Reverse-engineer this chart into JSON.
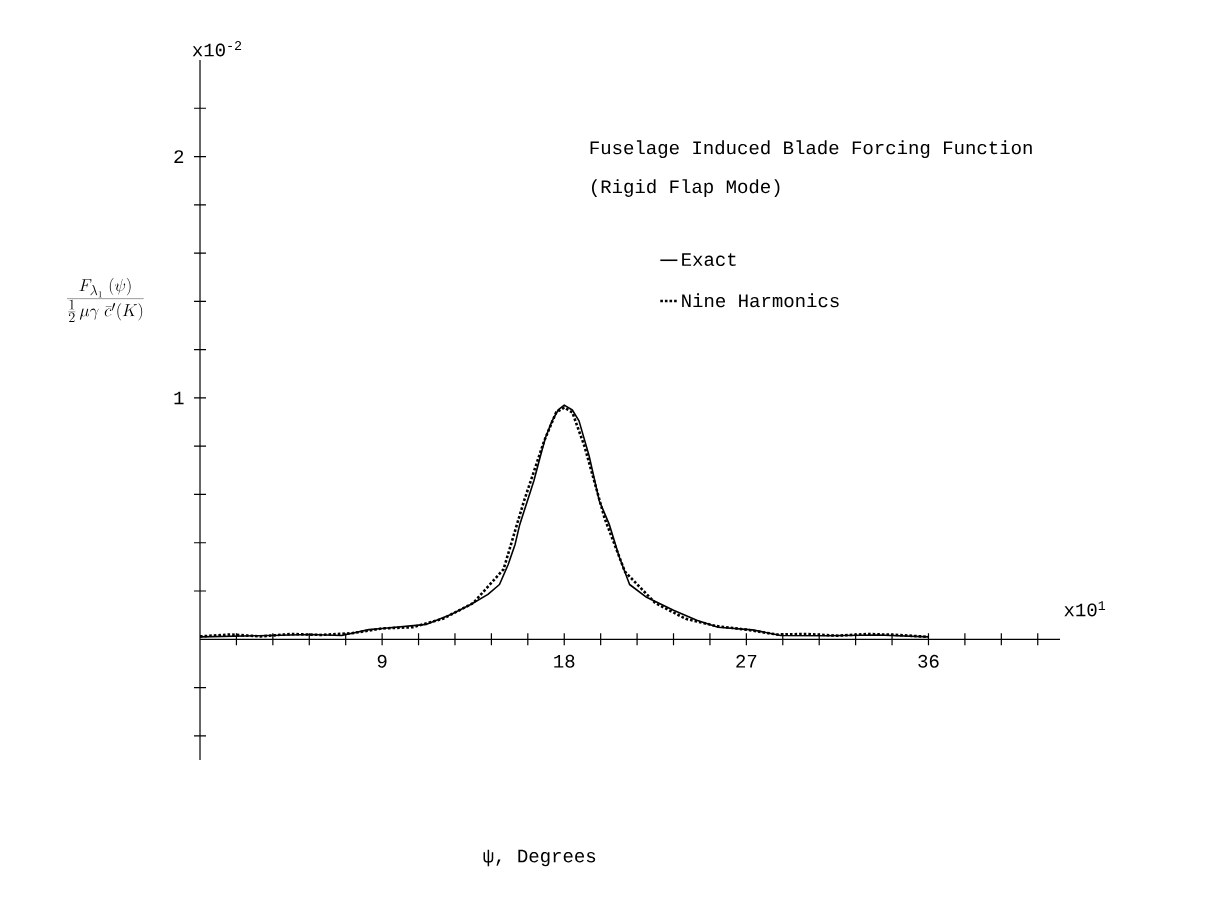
{
  "chart_data": {
    "type": "line",
    "title": "Fuselage Induced Blade Forcing Function",
    "subtitle": "(Rigid Flap Mode)",
    "xlabel": "ψ, Degrees",
    "ylabel": "\\frac{F_{\\lambda_1}\\;(\\psi)}{\\frac{1}{2}\\,\\mu\\gamma\\;\\bar{c}'(K)}",
    "annotations": [
      "x10$^{-2}$",
      "x10$^{1}$"
    ],
    "xlim": [
      0,
      42.5
    ],
    "ylim": [
      -0.5,
      2.4
    ],
    "xticks": [
      {
        "value": 1.8,
        "label": null
      },
      {
        "value": 3.6,
        "label": null
      },
      {
        "value": 5.4,
        "label": null
      },
      {
        "value": 7.2,
        "label": null
      },
      9,
      {
        "value": 10.8,
        "label": null
      },
      {
        "value": 12.6,
        "label": null
      },
      {
        "value": 14.4,
        "label": null
      },
      {
        "value": 16.2,
        "label": null
      },
      18,
      {
        "value": 19.8,
        "label": null
      },
      {
        "value": 21.6,
        "label": null
      },
      {
        "value": 23.4,
        "label": null
      },
      {
        "value": 25.2,
        "label": null
      },
      27,
      {
        "value": 28.8,
        "label": null
      },
      {
        "value": 30.6,
        "label": null
      },
      {
        "value": 32.4,
        "label": null
      },
      {
        "value": 34.2,
        "label": null
      },
      36,
      {
        "value": 37.8,
        "label": null
      },
      {
        "value": 39.6,
        "label": null
      },
      {
        "value": 41.4,
        "label": null
      }
    ],
    "yticks": [
      {
        "value": -0.4,
        "label": null
      },
      {
        "value": -0.2,
        "label": null
      },
      {
        "value": 0.2,
        "label": null
      },
      {
        "value": 0.4,
        "label": null
      },
      {
        "value": 0.6,
        "label": null
      },
      {
        "value": 0.8,
        "label": null
      },
      1,
      {
        "value": 1.2,
        "label": null
      },
      {
        "value": 1.4,
        "label": null
      },
      {
        "value": 1.6,
        "label": null
      },
      {
        "value": 1.8,
        "label": null
      },
      2,
      {
        "value": 2.2,
        "label": null
      }
    ],
    "grid": false,
    "legend": "top right",
    "marker": "none",
    "series": [
      {
        "name": "Exact",
        "color": "#000000",
        "line_style": "solid",
        "x": [
          0,
          2.9,
          5.5,
          7,
          8.35,
          9,
          11.2,
          12.4,
          13.4,
          14.23,
          14.8,
          15.23,
          15.57,
          15.8,
          16.15,
          16.5,
          16.8,
          17.07,
          17.4,
          17.7,
          18,
          18.4,
          18.73,
          19.23,
          19.73,
          20.23,
          20.73,
          21.23,
          22.07,
          23.4,
          24.55,
          25.6,
          27.3,
          28.7,
          31,
          33.5,
          36
        ],
        "values": [
          0.01,
          0.015,
          0.02,
          0.016,
          0.04,
          0.045,
          0.062,
          0.103,
          0.145,
          0.186,
          0.227,
          0.31,
          0.393,
          0.475,
          0.566,
          0.657,
          0.752,
          0.835,
          0.905,
          0.95,
          0.97,
          0.95,
          0.905,
          0.76,
          0.574,
          0.475,
          0.339,
          0.227,
          0.174,
          0.12,
          0.079,
          0.05,
          0.039,
          0.016,
          0.015,
          0.018,
          0.01
        ]
      },
      {
        "name": "Nine Harmonics",
        "color": "#000000",
        "line_style": "dotted",
        "x": [
          0,
          1.5,
          3,
          4.5,
          6,
          7.5,
          9,
          10.5,
          12,
          13.5,
          15,
          16,
          17,
          17.6,
          18,
          18.4,
          19,
          20,
          21,
          22.5,
          24,
          25.5,
          27,
          28.5,
          30,
          31.5,
          33,
          34.5,
          36
        ],
        "values": [
          0.012,
          0.02,
          0.012,
          0.022,
          0.018,
          0.025,
          0.045,
          0.05,
          0.085,
          0.15,
          0.29,
          0.57,
          0.82,
          0.94,
          0.96,
          0.94,
          0.8,
          0.5,
          0.28,
          0.15,
          0.085,
          0.055,
          0.04,
          0.02,
          0.022,
          0.015,
          0.022,
          0.018,
          0.01
        ]
      }
    ]
  }
}
